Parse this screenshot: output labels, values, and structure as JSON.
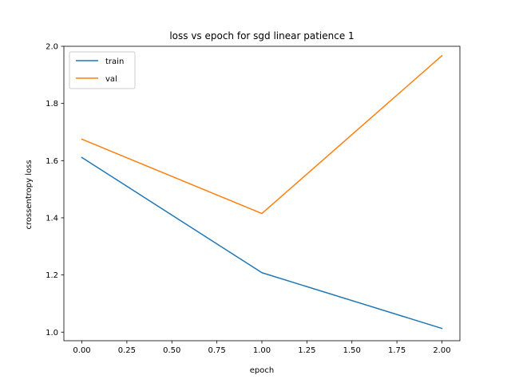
{
  "chart_data": {
    "type": "line",
    "title": "loss vs epoch for sgd linear patience 1",
    "xlabel": "epoch",
    "ylabel": "crossentropy loss",
    "x": [
      0.0,
      1.0,
      2.0
    ],
    "xlim": [
      -0.1,
      2.1
    ],
    "ylim": [
      0.97,
      2.0
    ],
    "xticks": [
      0.0,
      0.25,
      0.5,
      0.75,
      1.0,
      1.25,
      1.5,
      1.75,
      2.0
    ],
    "xtick_labels": [
      "0.00",
      "0.25",
      "0.50",
      "0.75",
      "1.00",
      "1.25",
      "1.50",
      "1.75",
      "2.00"
    ],
    "yticks": [
      1.0,
      1.2,
      1.4,
      1.6,
      1.8,
      2.0
    ],
    "ytick_labels": [
      "1.0",
      "1.2",
      "1.4",
      "1.6",
      "1.8",
      "2.0"
    ],
    "grid": false,
    "legend_position": "top-left",
    "series": [
      {
        "name": "train",
        "values": [
          1.611,
          1.208,
          1.013
        ],
        "color": "#1f77b4"
      },
      {
        "name": "val",
        "values": [
          1.675,
          1.415,
          1.967
        ],
        "color": "#ff7f0e"
      }
    ]
  }
}
